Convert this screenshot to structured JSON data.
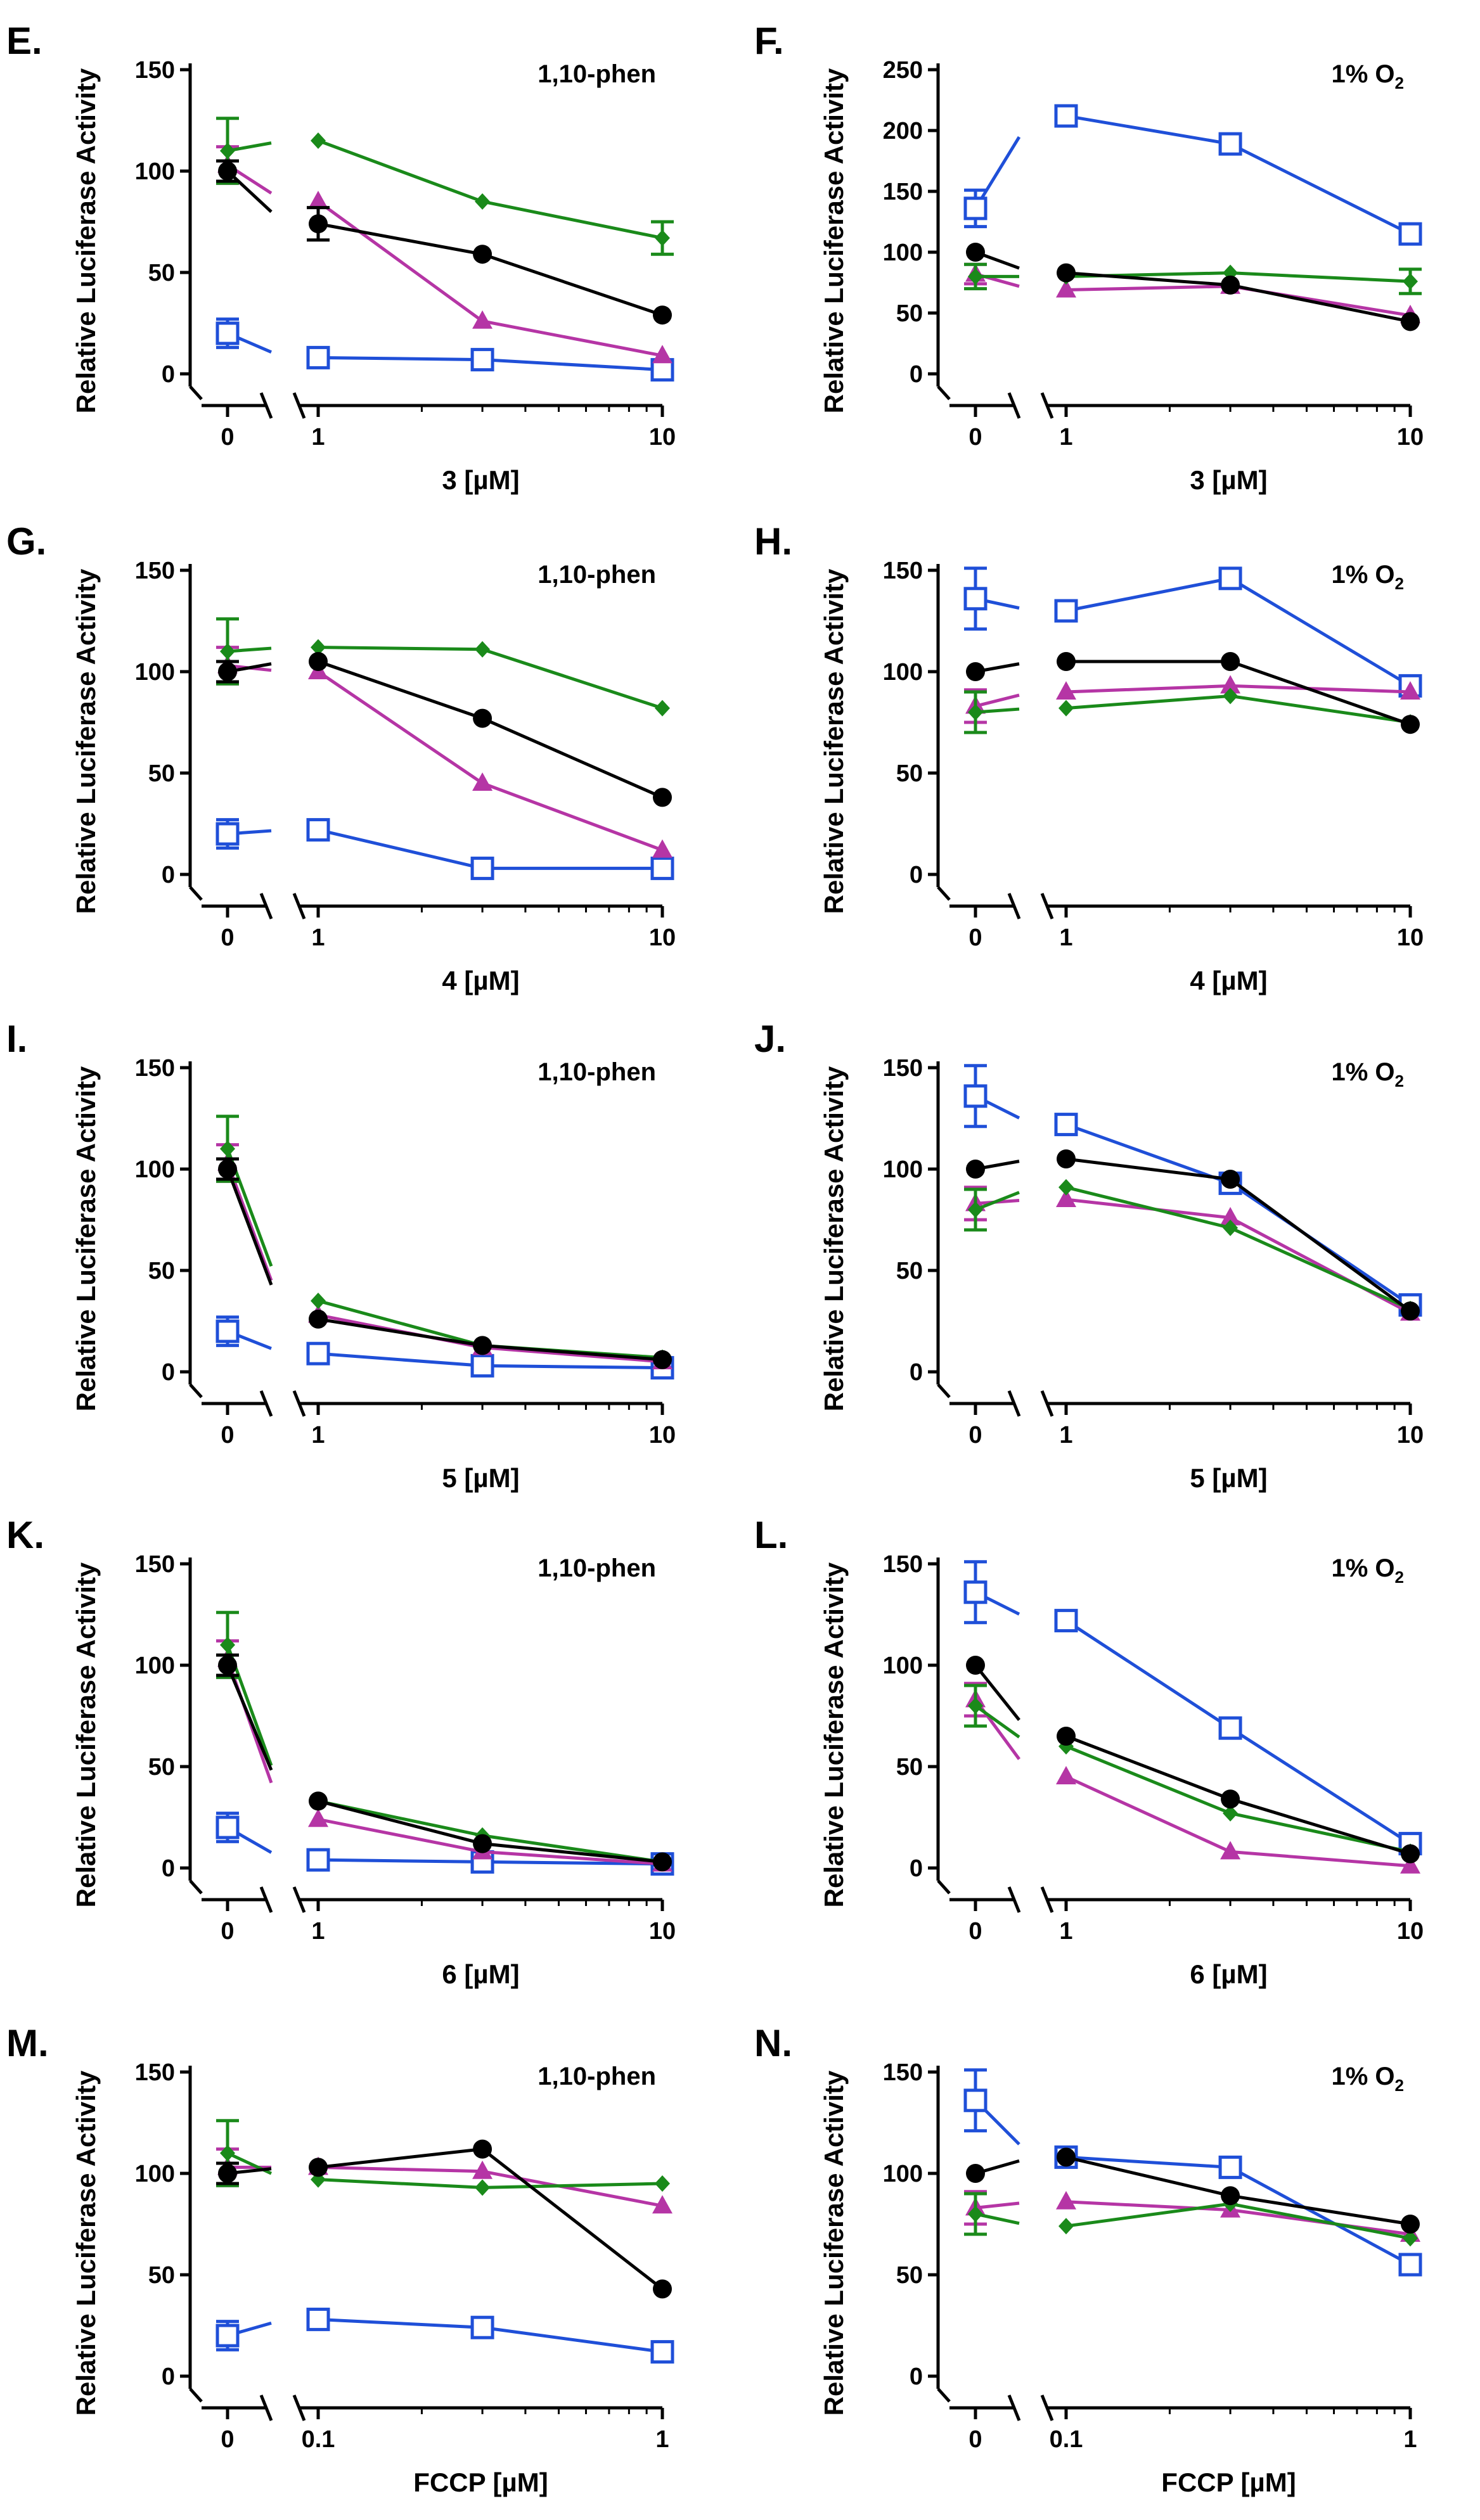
{
  "figure": {
    "ylabel": "Relative Luciferase Activity",
    "colors": {
      "black": "#000000",
      "green": "#1a8a1a",
      "magenta": "#b535a5",
      "blue": "#1f4fd8"
    }
  },
  "chart_data": [
    {
      "panel": "E.",
      "type": "line",
      "condition": "1,10-phen",
      "condition_sub": "",
      "xlabel": "3 [µM]",
      "x_break": true,
      "x_log": true,
      "x": [
        0,
        1,
        3,
        10
      ],
      "x_ticks": [
        "0",
        "1",
        "10"
      ],
      "x_tick_values": [
        0,
        1,
        10
      ],
      "ylim": [
        0,
        150
      ],
      "yticks": [
        0,
        50,
        100,
        150
      ],
      "series": [
        {
          "name": "black-circle",
          "color": "black",
          "marker": "circle",
          "values": [
            100,
            74,
            59,
            29
          ],
          "errors": [
            5,
            8,
            0,
            0
          ]
        },
        {
          "name": "green-diamond",
          "color": "green",
          "marker": "diamond",
          "values": [
            110,
            115,
            85,
            67
          ],
          "errors": [
            16,
            0,
            0,
            8
          ]
        },
        {
          "name": "magenta-triangle",
          "color": "magenta",
          "marker": "triangle",
          "values": [
            103,
            85,
            26,
            9
          ],
          "errors": [
            9,
            0,
            0,
            0
          ]
        },
        {
          "name": "blue-square",
          "color": "blue",
          "marker": "square",
          "values": [
            20,
            8,
            7,
            2
          ],
          "errors": [
            7,
            0,
            0,
            0
          ]
        }
      ]
    },
    {
      "panel": "F.",
      "type": "line",
      "condition": "1% O",
      "condition_sub": "2",
      "xlabel": "3 [µM]",
      "x_break": true,
      "x_log": true,
      "x": [
        0,
        1,
        3,
        10
      ],
      "x_ticks": [
        "0",
        "1",
        "10"
      ],
      "x_tick_values": [
        0,
        1,
        10
      ],
      "ylim": [
        0,
        250
      ],
      "yticks": [
        0,
        50,
        100,
        150,
        200,
        250
      ],
      "series": [
        {
          "name": "black-circle",
          "color": "black",
          "marker": "circle",
          "values": [
            100,
            83,
            73,
            43
          ],
          "errors": [
            0,
            0,
            0,
            0
          ]
        },
        {
          "name": "green-diamond",
          "color": "green",
          "marker": "diamond",
          "values": [
            80,
            80,
            83,
            76
          ],
          "errors": [
            10,
            0,
            0,
            10
          ]
        },
        {
          "name": "magenta-triangle",
          "color": "magenta",
          "marker": "triangle",
          "values": [
            82,
            69,
            72,
            48
          ],
          "errors": [
            8,
            0,
            0,
            0
          ]
        },
        {
          "name": "blue-square",
          "color": "blue",
          "marker": "square",
          "values": [
            136,
            212,
            189,
            115
          ],
          "errors": [
            15,
            0,
            0,
            0
          ]
        }
      ]
    },
    {
      "panel": "G.",
      "type": "line",
      "condition": "1,10-phen",
      "condition_sub": "",
      "xlabel": "4 [µM]",
      "x_break": true,
      "x_log": true,
      "x": [
        0,
        1,
        3,
        10
      ],
      "x_ticks": [
        "0",
        "1",
        "10"
      ],
      "x_tick_values": [
        0,
        1,
        10
      ],
      "ylim": [
        0,
        150
      ],
      "yticks": [
        0,
        50,
        100,
        150
      ],
      "series": [
        {
          "name": "black-circle",
          "color": "black",
          "marker": "circle",
          "values": [
            100,
            105,
            77,
            38
          ],
          "errors": [
            5,
            0,
            0,
            0
          ]
        },
        {
          "name": "green-diamond",
          "color": "green",
          "marker": "diamond",
          "values": [
            110,
            112,
            111,
            82
          ],
          "errors": [
            16,
            0,
            0,
            0
          ]
        },
        {
          "name": "magenta-triangle",
          "color": "magenta",
          "marker": "triangle",
          "values": [
            103,
            100,
            45,
            12
          ],
          "errors": [
            9,
            0,
            0,
            0
          ]
        },
        {
          "name": "blue-square",
          "color": "blue",
          "marker": "square",
          "values": [
            20,
            22,
            3,
            3
          ],
          "errors": [
            7,
            0,
            0,
            0
          ]
        }
      ]
    },
    {
      "panel": "H.",
      "type": "line",
      "condition": "1% O",
      "condition_sub": "2",
      "xlabel": "4 [µM]",
      "x_break": true,
      "x_log": true,
      "x": [
        0,
        1,
        3,
        10
      ],
      "x_ticks": [
        "0",
        "1",
        "10"
      ],
      "x_tick_values": [
        0,
        1,
        10
      ],
      "ylim": [
        0,
        150
      ],
      "yticks": [
        0,
        50,
        100,
        150
      ],
      "series": [
        {
          "name": "black-circle",
          "color": "black",
          "marker": "circle",
          "values": [
            100,
            105,
            105,
            74
          ],
          "errors": [
            0,
            0,
            0,
            0
          ]
        },
        {
          "name": "green-diamond",
          "color": "green",
          "marker": "diamond",
          "values": [
            80,
            82,
            88,
            75
          ],
          "errors": [
            10,
            0,
            0,
            0
          ]
        },
        {
          "name": "magenta-triangle",
          "color": "magenta",
          "marker": "triangle",
          "values": [
            83,
            90,
            93,
            90
          ],
          "errors": [
            8,
            0,
            0,
            0
          ]
        },
        {
          "name": "blue-square",
          "color": "blue",
          "marker": "square",
          "values": [
            136,
            130,
            146,
            93
          ],
          "errors": [
            15,
            0,
            0,
            0
          ]
        }
      ]
    },
    {
      "panel": "I.",
      "type": "line",
      "condition": "1,10-phen",
      "condition_sub": "",
      "xlabel": "5 [µM]",
      "x_break": true,
      "x_log": true,
      "x": [
        0,
        1,
        3,
        10
      ],
      "x_ticks": [
        "0",
        "1",
        "10"
      ],
      "x_tick_values": [
        0,
        1,
        10
      ],
      "ylim": [
        0,
        150
      ],
      "yticks": [
        0,
        50,
        100,
        150
      ],
      "series": [
        {
          "name": "black-circle",
          "color": "black",
          "marker": "circle",
          "values": [
            100,
            26,
            13,
            6
          ],
          "errors": [
            5,
            0,
            0,
            0
          ]
        },
        {
          "name": "green-diamond",
          "color": "green",
          "marker": "diamond",
          "values": [
            110,
            35,
            13,
            7
          ],
          "errors": [
            16,
            0,
            0,
            0
          ]
        },
        {
          "name": "magenta-triangle",
          "color": "magenta",
          "marker": "triangle",
          "values": [
            103,
            28,
            12,
            5
          ],
          "errors": [
            9,
            0,
            0,
            0
          ]
        },
        {
          "name": "blue-square",
          "color": "blue",
          "marker": "square",
          "values": [
            20,
            9,
            3,
            2
          ],
          "errors": [
            7,
            0,
            0,
            0
          ]
        }
      ]
    },
    {
      "panel": "J.",
      "type": "line",
      "condition": "1% O",
      "condition_sub": "2",
      "xlabel": "5 [µM]",
      "x_break": true,
      "x_log": true,
      "x": [
        0,
        1,
        3,
        10
      ],
      "x_ticks": [
        "0",
        "1",
        "10"
      ],
      "x_tick_values": [
        0,
        1,
        10
      ],
      "ylim": [
        0,
        150
      ],
      "yticks": [
        0,
        50,
        100,
        150
      ],
      "series": [
        {
          "name": "black-circle",
          "color": "black",
          "marker": "circle",
          "values": [
            100,
            105,
            95,
            30
          ],
          "errors": [
            0,
            0,
            0,
            0
          ]
        },
        {
          "name": "green-diamond",
          "color": "green",
          "marker": "diamond",
          "values": [
            80,
            91,
            71,
            31
          ],
          "errors": [
            10,
            0,
            0,
            0
          ]
        },
        {
          "name": "magenta-triangle",
          "color": "magenta",
          "marker": "triangle",
          "values": [
            83,
            85,
            76,
            29
          ],
          "errors": [
            8,
            0,
            0,
            0
          ]
        },
        {
          "name": "blue-square",
          "color": "blue",
          "marker": "square",
          "values": [
            136,
            122,
            93,
            33
          ],
          "errors": [
            15,
            0,
            0,
            0
          ]
        }
      ]
    },
    {
      "panel": "K.",
      "type": "line",
      "condition": "1,10-phen",
      "condition_sub": "",
      "xlabel": "6 [µM]",
      "x_break": true,
      "x_log": true,
      "x": [
        0,
        1,
        3,
        10
      ],
      "x_ticks": [
        "0",
        "1",
        "10"
      ],
      "x_tick_values": [
        0,
        1,
        10
      ],
      "ylim": [
        0,
        150
      ],
      "yticks": [
        0,
        50,
        100,
        150
      ],
      "series": [
        {
          "name": "black-circle",
          "color": "black",
          "marker": "circle",
          "values": [
            100,
            33,
            12,
            3
          ],
          "errors": [
            5,
            0,
            0,
            0
          ]
        },
        {
          "name": "green-diamond",
          "color": "green",
          "marker": "diamond",
          "values": [
            110,
            33,
            16,
            3
          ],
          "errors": [
            16,
            0,
            0,
            0
          ]
        },
        {
          "name": "magenta-triangle",
          "color": "magenta",
          "marker": "triangle",
          "values": [
            103,
            24,
            8,
            2
          ],
          "errors": [
            9,
            0,
            0,
            0
          ]
        },
        {
          "name": "blue-square",
          "color": "blue",
          "marker": "square",
          "values": [
            20,
            4,
            3,
            2
          ],
          "errors": [
            7,
            0,
            0,
            0
          ]
        }
      ]
    },
    {
      "panel": "L.",
      "type": "line",
      "condition": "1% O",
      "condition_sub": "2",
      "xlabel": "6 [µM]",
      "x_break": true,
      "x_log": true,
      "x": [
        0,
        1,
        3,
        10
      ],
      "x_ticks": [
        "0",
        "1",
        "10"
      ],
      "x_tick_values": [
        0,
        1,
        10
      ],
      "ylim": [
        0,
        150
      ],
      "yticks": [
        0,
        50,
        100,
        150
      ],
      "series": [
        {
          "name": "black-circle",
          "color": "black",
          "marker": "circle",
          "values": [
            100,
            65,
            34,
            7
          ],
          "errors": [
            0,
            0,
            0,
            0
          ]
        },
        {
          "name": "green-diamond",
          "color": "green",
          "marker": "diamond",
          "values": [
            80,
            60,
            27,
            8
          ],
          "errors": [
            10,
            0,
            0,
            0
          ]
        },
        {
          "name": "magenta-triangle",
          "color": "magenta",
          "marker": "triangle",
          "values": [
            83,
            45,
            8,
            1
          ],
          "errors": [
            8,
            0,
            0,
            0
          ]
        },
        {
          "name": "blue-square",
          "color": "blue",
          "marker": "square",
          "values": [
            136,
            122,
            69,
            12
          ],
          "errors": [
            15,
            0,
            0,
            0
          ]
        }
      ]
    },
    {
      "panel": "M.",
      "type": "line",
      "condition": "1,10-phen",
      "condition_sub": "",
      "xlabel": "FCCP [µM]",
      "x_break": true,
      "x_log": true,
      "x": [
        0,
        0.1,
        0.3,
        1
      ],
      "x_ticks": [
        "0",
        "0.1",
        "1"
      ],
      "x_tick_values": [
        0,
        0.1,
        1
      ],
      "ylim": [
        0,
        150
      ],
      "yticks": [
        0,
        50,
        100,
        150
      ],
      "series": [
        {
          "name": "black-circle",
          "color": "black",
          "marker": "circle",
          "values": [
            100,
            103,
            112,
            43
          ],
          "errors": [
            5,
            0,
            0,
            0
          ]
        },
        {
          "name": "green-diamond",
          "color": "green",
          "marker": "diamond",
          "values": [
            110,
            97,
            93,
            95
          ],
          "errors": [
            16,
            0,
            0,
            0
          ]
        },
        {
          "name": "magenta-triangle",
          "color": "magenta",
          "marker": "triangle",
          "values": [
            103,
            103,
            101,
            84
          ],
          "errors": [
            9,
            0,
            0,
            0
          ]
        },
        {
          "name": "blue-square",
          "color": "blue",
          "marker": "square",
          "values": [
            20,
            28,
            24,
            12
          ],
          "errors": [
            7,
            0,
            0,
            0
          ]
        }
      ]
    },
    {
      "panel": "N.",
      "type": "line",
      "condition": "1% O",
      "condition_sub": "2",
      "xlabel": "FCCP [µM]",
      "x_break": true,
      "x_log": true,
      "x": [
        0,
        0.1,
        0.3,
        1
      ],
      "x_ticks": [
        "0",
        "0.1",
        "1"
      ],
      "x_tick_values": [
        0,
        0.1,
        1
      ],
      "ylim": [
        0,
        150
      ],
      "yticks": [
        0,
        50,
        100,
        150
      ],
      "series": [
        {
          "name": "black-circle",
          "color": "black",
          "marker": "circle",
          "values": [
            100,
            108,
            89,
            75
          ],
          "errors": [
            0,
            0,
            0,
            0
          ]
        },
        {
          "name": "green-diamond",
          "color": "green",
          "marker": "diamond",
          "values": [
            80,
            74,
            85,
            68
          ],
          "errors": [
            10,
            0,
            0,
            0
          ]
        },
        {
          "name": "magenta-triangle",
          "color": "magenta",
          "marker": "triangle",
          "values": [
            83,
            86,
            82,
            70
          ],
          "errors": [
            8,
            0,
            0,
            0
          ]
        },
        {
          "name": "blue-square",
          "color": "blue",
          "marker": "square",
          "values": [
            136,
            108,
            103,
            55
          ],
          "errors": [
            15,
            0,
            0,
            0
          ]
        }
      ]
    }
  ]
}
